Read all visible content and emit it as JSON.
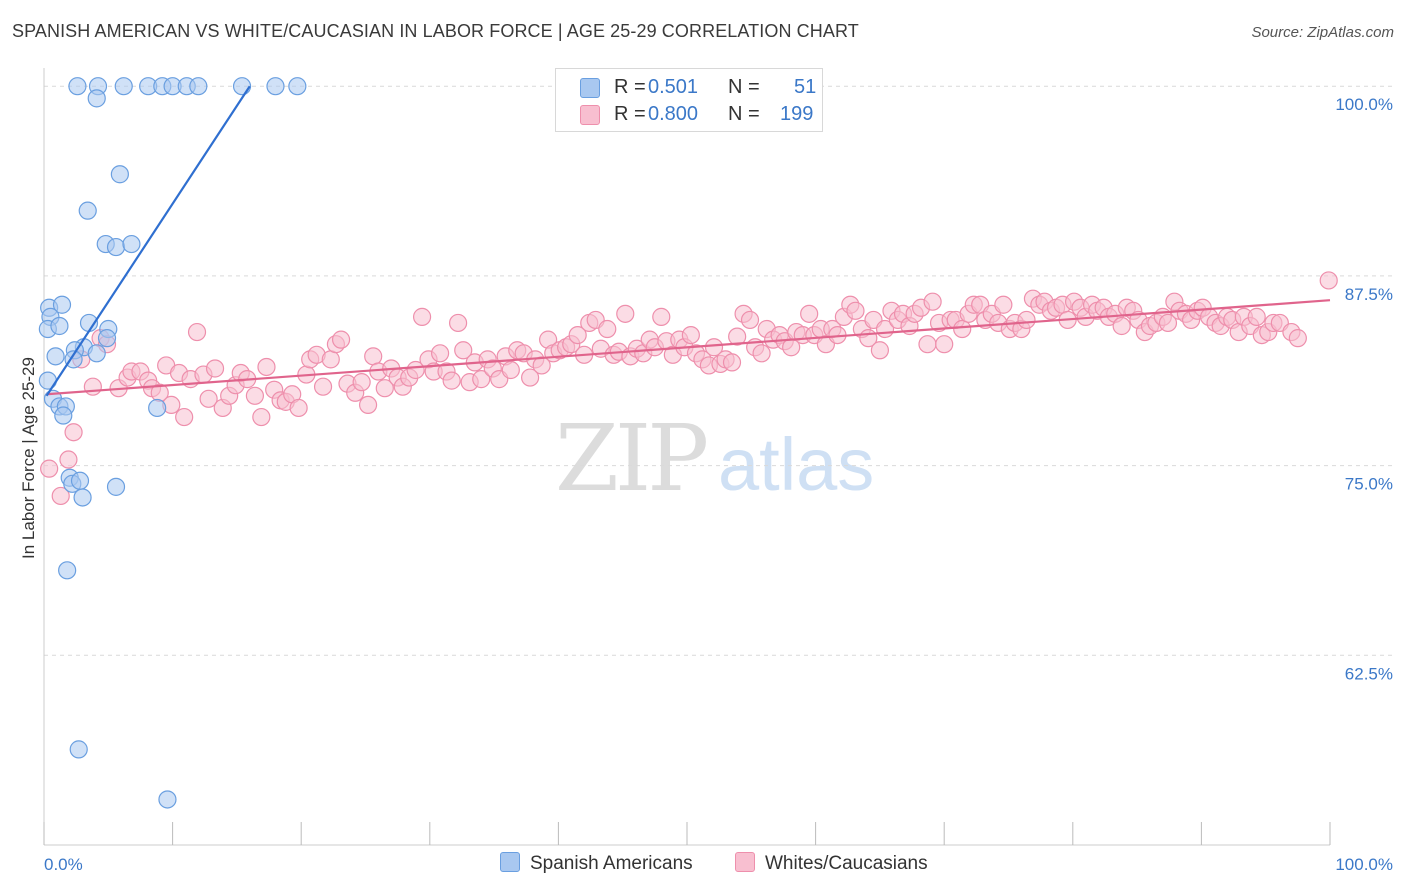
{
  "title": "SPANISH AMERICAN VS WHITE/CAUCASIAN IN LABOR FORCE | AGE 25-29 CORRELATION CHART",
  "source": "Source: ZipAtlas.com",
  "watermark": {
    "zip": "ZIP",
    "atlas": "atlas"
  },
  "legend": {
    "rows": [
      {
        "r_label": "R =",
        "r_value": "0.501",
        "n_label": "N =",
        "n_value": "51",
        "color": "#a9c8f0",
        "border": "#6a9fe0"
      },
      {
        "r_label": "R =",
        "r_value": "0.800",
        "n_label": "N =",
        "n_value": "199",
        "color": "#f8bfd0",
        "border": "#ee8fac"
      }
    ]
  },
  "bottom_legend": {
    "series1": "Spanish Americans",
    "series2": "Whites/Caucasians"
  },
  "colors": {
    "blue_fill": "#a9c8f0",
    "blue_stroke": "#6a9fe0",
    "blue_line": "#2f6fd0",
    "pink_fill": "#f8bfd0",
    "pink_stroke": "#ee8fac",
    "pink_line": "#e0648c",
    "grid": "#d9d9d9",
    "tick_label": "#3b78c8"
  },
  "chart_data": {
    "type": "scatter",
    "title": "SPANISH AMERICAN VS WHITE/CAUCASIAN IN LABOR FORCE | AGE 25-29 CORRELATION CHART",
    "xlabel": "",
    "ylabel": "In Labor Force | Age 25-29",
    "xlim": [
      0,
      100
    ],
    "ylim": [
      50.0,
      101.2
    ],
    "x_tick_labels": [
      "0.0%",
      "100.0%"
    ],
    "y_ticks": [
      62.5,
      75.0,
      87.5,
      100.0
    ],
    "y_tick_labels": [
      "62.5%",
      "75.0%",
      "87.5%",
      "100.0%"
    ],
    "grid": "horizontal dashed",
    "legend_position": "top-center",
    "series": [
      {
        "name": "Spanish Americans",
        "R": 0.501,
        "N": 51,
        "trendline": {
          "x": [
            0.2,
            16.0
          ],
          "y": [
            79.6,
            100.0
          ]
        },
        "points": [
          [
            2.6,
            100
          ],
          [
            4.2,
            100
          ],
          [
            6.2,
            100
          ],
          [
            8.1,
            100
          ],
          [
            9.2,
            100
          ],
          [
            10.0,
            100
          ],
          [
            11.1,
            100
          ],
          [
            12.0,
            100
          ],
          [
            15.4,
            100
          ],
          [
            18.0,
            100
          ],
          [
            19.7,
            100
          ],
          [
            4.1,
            99.2
          ],
          [
            5.9,
            94.2
          ],
          [
            3.4,
            91.8
          ],
          [
            4.8,
            89.6
          ],
          [
            5.6,
            89.4
          ],
          [
            6.8,
            89.6
          ],
          [
            0.4,
            85.4
          ],
          [
            1.4,
            85.6
          ],
          [
            0.5,
            84.8
          ],
          [
            0.3,
            84.0
          ],
          [
            1.2,
            84.2
          ],
          [
            3.5,
            84.4
          ],
          [
            5.0,
            84.0
          ],
          [
            4.9,
            83.4
          ],
          [
            3.1,
            82.8
          ],
          [
            2.4,
            82.6
          ],
          [
            4.1,
            82.4
          ],
          [
            0.9,
            82.2
          ],
          [
            2.3,
            82.0
          ],
          [
            0.3,
            80.6
          ],
          [
            0.7,
            79.4
          ],
          [
            1.2,
            78.9
          ],
          [
            1.7,
            78.9
          ],
          [
            1.5,
            78.3
          ],
          [
            8.8,
            78.8
          ],
          [
            2.0,
            74.2
          ],
          [
            2.2,
            73.8
          ],
          [
            2.8,
            74.0
          ],
          [
            5.6,
            73.6
          ],
          [
            3.0,
            72.9
          ],
          [
            1.8,
            68.1
          ],
          [
            2.7,
            56.3
          ],
          [
            9.6,
            53.0
          ]
        ]
      },
      {
        "name": "Whites/Caucasians",
        "R": 0.8,
        "N": 199,
        "trendline": {
          "x": [
            0.2,
            100.0
          ],
          "y": [
            79.7,
            85.9
          ]
        },
        "points": [
          [
            0.4,
            74.8
          ],
          [
            1.3,
            73.0
          ],
          [
            1.9,
            75.4
          ],
          [
            2.3,
            77.2
          ],
          [
            2.9,
            82.0
          ],
          [
            3.8,
            80.2
          ],
          [
            4.4,
            83.4
          ],
          [
            4.9,
            83.0
          ],
          [
            5.8,
            80.1
          ],
          [
            6.5,
            80.8
          ],
          [
            6.8,
            81.2
          ],
          [
            7.5,
            81.2
          ],
          [
            8.1,
            80.6
          ],
          [
            8.4,
            80.1
          ],
          [
            9.0,
            79.8
          ],
          [
            9.5,
            81.6
          ],
          [
            9.9,
            79.0
          ],
          [
            10.5,
            81.1
          ],
          [
            10.9,
            78.2
          ],
          [
            11.4,
            80.7
          ],
          [
            11.9,
            83.8
          ],
          [
            12.4,
            81.0
          ],
          [
            12.8,
            79.4
          ],
          [
            13.3,
            81.4
          ],
          [
            13.9,
            78.8
          ],
          [
            14.4,
            79.6
          ],
          [
            14.9,
            80.3
          ],
          [
            15.3,
            81.1
          ],
          [
            15.8,
            80.7
          ],
          [
            16.4,
            79.6
          ],
          [
            16.9,
            78.2
          ],
          [
            17.3,
            81.5
          ],
          [
            17.9,
            80.0
          ],
          [
            18.4,
            79.3
          ],
          [
            18.8,
            79.2
          ],
          [
            19.3,
            79.7
          ],
          [
            19.8,
            78.8
          ],
          [
            20.4,
            81.0
          ],
          [
            20.7,
            82.0
          ],
          [
            21.2,
            82.3
          ],
          [
            21.7,
            80.2
          ],
          [
            22.3,
            82.0
          ],
          [
            22.7,
            83.0
          ],
          [
            23.1,
            83.3
          ],
          [
            23.6,
            80.4
          ],
          [
            24.2,
            79.8
          ],
          [
            24.7,
            80.5
          ],
          [
            25.2,
            79.0
          ],
          [
            25.6,
            82.2
          ],
          [
            26.0,
            81.2
          ],
          [
            26.5,
            80.1
          ],
          [
            27.0,
            81.4
          ],
          [
            27.5,
            80.8
          ],
          [
            27.9,
            80.2
          ],
          [
            28.4,
            80.8
          ],
          [
            28.9,
            81.3
          ],
          [
            29.4,
            84.8
          ],
          [
            29.9,
            82.0
          ],
          [
            30.3,
            81.2
          ],
          [
            30.8,
            82.4
          ],
          [
            31.3,
            81.2
          ],
          [
            31.7,
            80.6
          ],
          [
            32.2,
            84.4
          ],
          [
            32.6,
            82.6
          ],
          [
            33.1,
            80.5
          ],
          [
            33.5,
            81.8
          ],
          [
            34.0,
            80.7
          ],
          [
            34.5,
            82.0
          ],
          [
            34.9,
            81.4
          ],
          [
            35.4,
            80.7
          ],
          [
            35.9,
            82.2
          ],
          [
            36.3,
            81.3
          ],
          [
            36.8,
            82.6
          ],
          [
            37.3,
            82.4
          ],
          [
            37.8,
            80.8
          ],
          [
            38.2,
            82.0
          ],
          [
            38.7,
            81.6
          ],
          [
            39.2,
            83.3
          ],
          [
            39.6,
            82.4
          ],
          [
            40.1,
            82.6
          ],
          [
            40.6,
            82.8
          ],
          [
            41.0,
            83.0
          ],
          [
            41.5,
            83.6
          ],
          [
            42.0,
            82.3
          ],
          [
            42.4,
            84.4
          ],
          [
            42.9,
            84.6
          ],
          [
            43.3,
            82.7
          ],
          [
            43.8,
            84.0
          ],
          [
            44.3,
            82.3
          ],
          [
            44.7,
            82.5
          ],
          [
            45.2,
            85.0
          ],
          [
            45.6,
            82.2
          ],
          [
            46.1,
            82.7
          ],
          [
            46.6,
            82.4
          ],
          [
            47.1,
            83.3
          ],
          [
            47.5,
            82.8
          ],
          [
            48.0,
            84.8
          ],
          [
            48.4,
            83.2
          ],
          [
            48.9,
            82.3
          ],
          [
            49.4,
            83.3
          ],
          [
            49.8,
            82.8
          ],
          [
            50.3,
            83.6
          ],
          [
            50.7,
            82.4
          ],
          [
            51.2,
            82.0
          ],
          [
            51.7,
            81.6
          ],
          [
            52.1,
            82.8
          ],
          [
            52.6,
            81.7
          ],
          [
            53.0,
            82.0
          ],
          [
            53.5,
            81.8
          ],
          [
            53.9,
            83.5
          ],
          [
            54.4,
            85.0
          ],
          [
            54.9,
            84.6
          ],
          [
            55.3,
            82.8
          ],
          [
            55.8,
            82.4
          ],
          [
            56.2,
            84.0
          ],
          [
            56.7,
            83.3
          ],
          [
            57.2,
            83.6
          ],
          [
            57.6,
            83.2
          ],
          [
            58.1,
            82.8
          ],
          [
            58.5,
            83.8
          ],
          [
            59.0,
            83.6
          ],
          [
            59.5,
            85.0
          ],
          [
            59.9,
            83.6
          ],
          [
            60.4,
            84.0
          ],
          [
            60.8,
            83.0
          ],
          [
            61.3,
            84.0
          ],
          [
            61.7,
            83.6
          ],
          [
            62.2,
            84.8
          ],
          [
            62.7,
            85.6
          ],
          [
            63.1,
            85.2
          ],
          [
            63.6,
            84.0
          ],
          [
            64.1,
            83.4
          ],
          [
            64.5,
            84.6
          ],
          [
            65.0,
            82.6
          ],
          [
            65.4,
            84.0
          ],
          [
            65.9,
            85.2
          ],
          [
            66.4,
            84.6
          ],
          [
            66.8,
            85.0
          ],
          [
            67.3,
            84.2
          ],
          [
            67.7,
            85.0
          ],
          [
            68.2,
            85.4
          ],
          [
            68.7,
            83.0
          ],
          [
            69.1,
            85.8
          ],
          [
            69.6,
            84.4
          ],
          [
            70.0,
            83.0
          ],
          [
            70.5,
            84.6
          ],
          [
            70.9,
            84.6
          ],
          [
            71.4,
            84.0
          ],
          [
            71.9,
            85.0
          ],
          [
            72.3,
            85.6
          ],
          [
            72.8,
            85.6
          ],
          [
            73.2,
            84.6
          ],
          [
            73.7,
            85.0
          ],
          [
            74.2,
            84.4
          ],
          [
            74.6,
            85.6
          ],
          [
            75.1,
            84.0
          ],
          [
            75.5,
            84.4
          ],
          [
            76.0,
            84.0
          ],
          [
            76.4,
            84.6
          ],
          [
            76.9,
            86.0
          ],
          [
            77.4,
            85.6
          ],
          [
            77.8,
            85.8
          ],
          [
            78.3,
            85.2
          ],
          [
            78.7,
            85.4
          ],
          [
            79.2,
            85.6
          ],
          [
            79.6,
            84.6
          ],
          [
            80.1,
            85.8
          ],
          [
            80.6,
            85.4
          ],
          [
            81.0,
            84.8
          ],
          [
            81.5,
            85.6
          ],
          [
            81.9,
            85.2
          ],
          [
            82.4,
            85.4
          ],
          [
            82.8,
            84.8
          ],
          [
            83.3,
            85.0
          ],
          [
            83.8,
            84.2
          ],
          [
            84.2,
            85.4
          ],
          [
            84.7,
            85.2
          ],
          [
            85.1,
            84.6
          ],
          [
            85.6,
            83.8
          ],
          [
            86.0,
            84.2
          ],
          [
            86.5,
            84.4
          ],
          [
            87.0,
            84.8
          ],
          [
            87.4,
            84.4
          ],
          [
            87.9,
            85.8
          ],
          [
            88.3,
            85.2
          ],
          [
            88.8,
            85.0
          ],
          [
            89.2,
            84.6
          ],
          [
            89.7,
            85.2
          ],
          [
            90.1,
            85.4
          ],
          [
            90.6,
            84.8
          ],
          [
            91.1,
            84.4
          ],
          [
            91.5,
            84.2
          ],
          [
            92.0,
            84.8
          ],
          [
            92.4,
            84.6
          ],
          [
            92.9,
            83.8
          ],
          [
            93.3,
            84.8
          ],
          [
            93.8,
            84.2
          ],
          [
            94.3,
            84.8
          ],
          [
            94.7,
            83.6
          ],
          [
            95.2,
            83.8
          ],
          [
            95.6,
            84.4
          ],
          [
            96.1,
            84.4
          ],
          [
            97.0,
            83.8
          ],
          [
            97.5,
            83.4
          ],
          [
            99.9,
            87.2
          ]
        ]
      }
    ]
  }
}
